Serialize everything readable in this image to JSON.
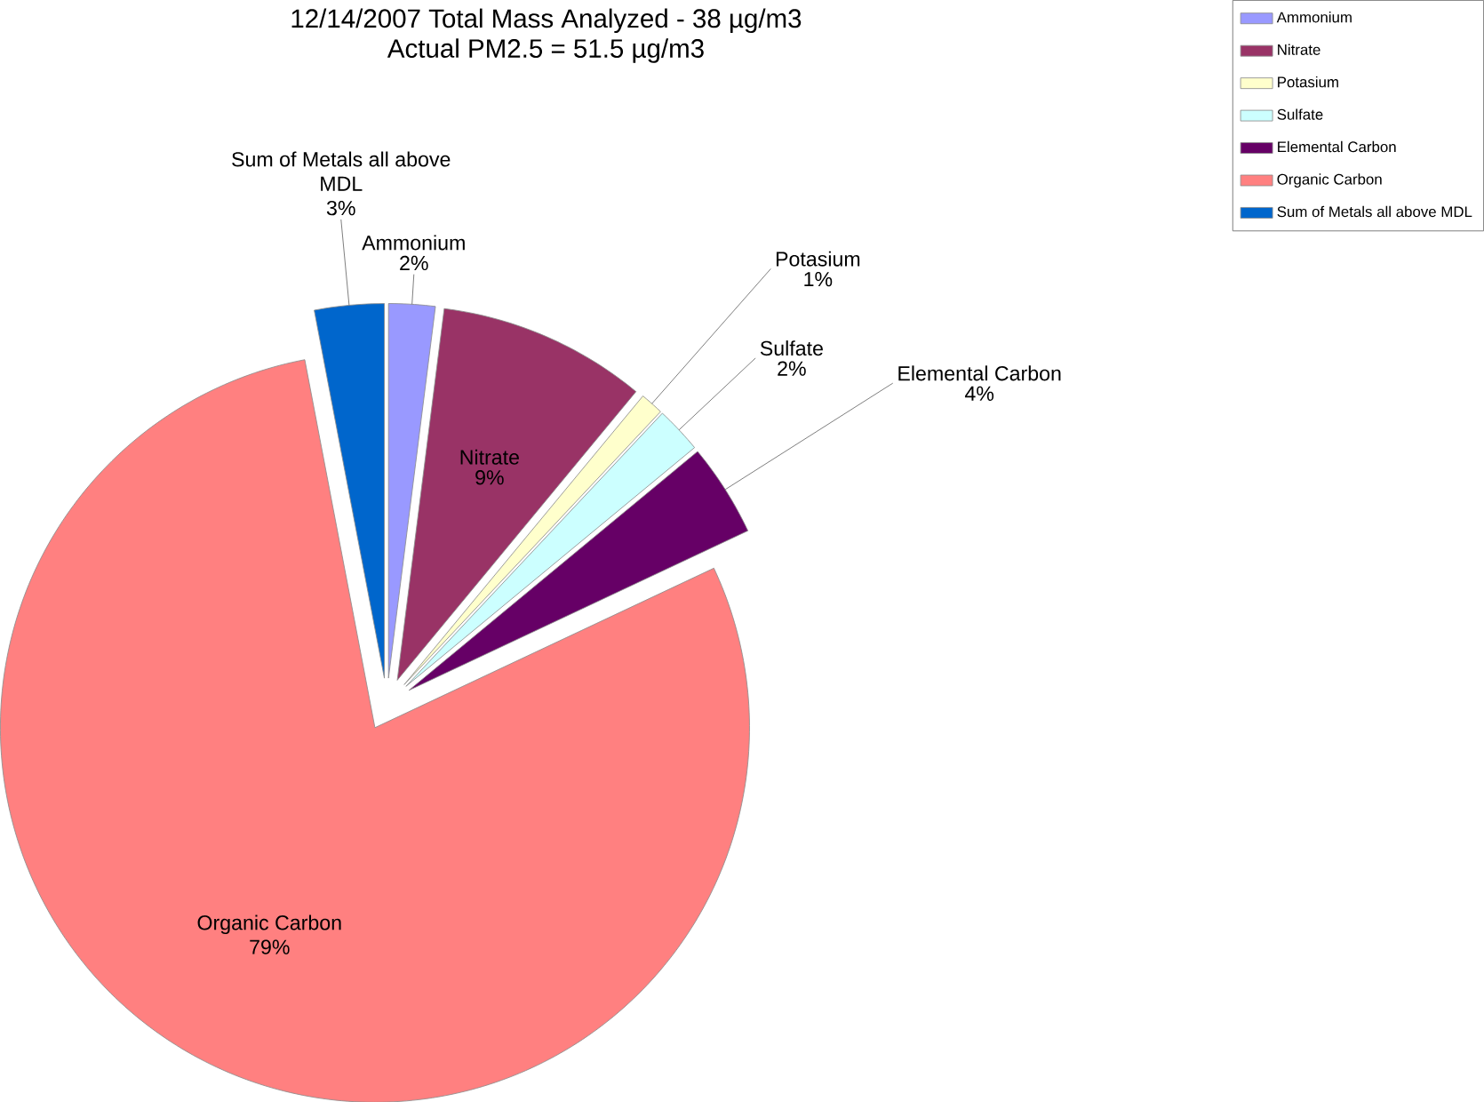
{
  "chart_data": {
    "type": "pie",
    "title": "12/14/2007 Total Mass Analyzed - 38 µg/m3",
    "subtitle": "Actual PM2.5 = 51.5 µg/m3",
    "categories": [
      "Ammonium",
      "Nitrate",
      "Potasium",
      "Sulfate",
      "Elemental Carbon",
      "Organic Carbon",
      "Sum of Metals all above MDL"
    ],
    "values": [
      2,
      9,
      1,
      2,
      4,
      79,
      3
    ],
    "value_labels": [
      "2%",
      "9%",
      "1%",
      "2%",
      "4%",
      "79%",
      "3%"
    ],
    "colors": [
      "#9999ff",
      "#993366",
      "#ffffcc",
      "#ccffff",
      "#660066",
      "#ff8080",
      "#0066cc"
    ],
    "legend": "top right"
  }
}
